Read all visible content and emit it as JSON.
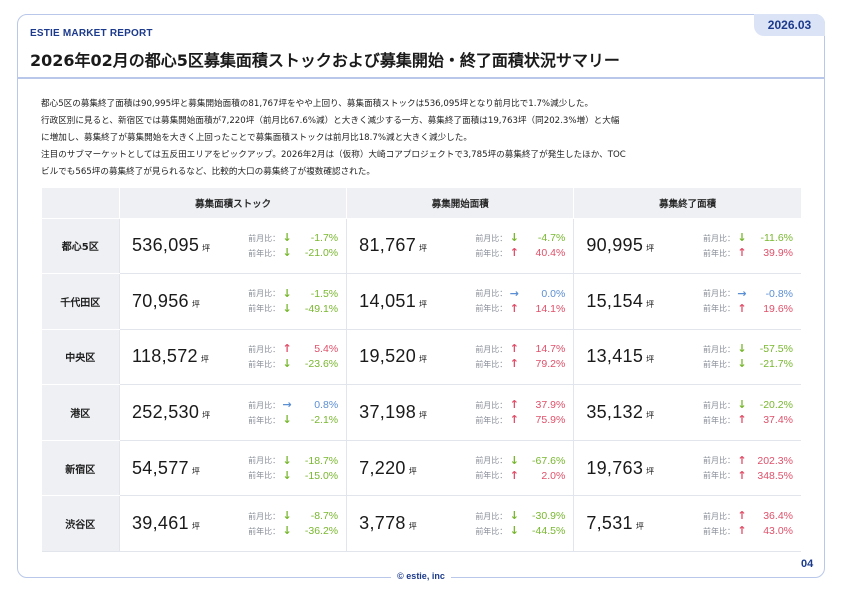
{
  "header": {
    "brand": "ESTIE MARKET REPORT",
    "date_badge": "2026.03",
    "title": "2026年02月の都心5区募集面積ストックおよび募集開始・終了面積状況サマリー"
  },
  "summary": [
    "都心5区の募集終了面積は90,995坪と募集開始面積の81,767坪をやや上回り、募集面積ストックは536,095坪となり前月比で1.7%減少した。",
    "行政区別に見ると、新宿区では募集開始面積が7,220坪（前月比67.6%減）と大きく減少する一方、募集終了面積は19,763坪（同202.3%増）と大幅",
    "に増加し、募集終了が募集開始を大きく上回ったことで募集面積ストックは前月比18.7%減と大きく減少した。",
    "注目のサブマーケットとしては五反田エリアをピックアップ。2026年2月は（仮称）大崎コアプロジェクトで3,785坪の募集終了が発生したほか、TOC",
    "ビルでも565坪の募集終了が見られるなど、比較的大口の募集終了が複数確認された。"
  ],
  "table": {
    "columns": [
      "募集面積ストック",
      "募集開始面積",
      "募集終了面積"
    ],
    "unit": "坪",
    "mom_label": "前月比：",
    "yoy_label": "前年比：",
    "rows": [
      {
        "area": "都心5区",
        "cells": [
          {
            "value": "536,095",
            "mom": {
              "dir": "down",
              "pct": "-1.7%"
            },
            "yoy": {
              "dir": "down",
              "pct": "-21.0%"
            }
          },
          {
            "value": "81,767",
            "mom": {
              "dir": "down",
              "pct": "-4.7%"
            },
            "yoy": {
              "dir": "up",
              "pct": "40.4%"
            }
          },
          {
            "value": "90,995",
            "mom": {
              "dir": "down",
              "pct": "-11.6%"
            },
            "yoy": {
              "dir": "up",
              "pct": "39.9%"
            }
          }
        ]
      },
      {
        "area": "千代田区",
        "cells": [
          {
            "value": "70,956",
            "mom": {
              "dir": "down",
              "pct": "-1.5%"
            },
            "yoy": {
              "dir": "down",
              "pct": "-49.1%"
            }
          },
          {
            "value": "14,051",
            "mom": {
              "dir": "flat",
              "pct": "0.0%"
            },
            "yoy": {
              "dir": "up",
              "pct": "14.1%"
            }
          },
          {
            "value": "15,154",
            "mom": {
              "dir": "flat",
              "pct": "-0.8%"
            },
            "yoy": {
              "dir": "up",
              "pct": "19.6%"
            }
          }
        ]
      },
      {
        "area": "中央区",
        "cells": [
          {
            "value": "118,572",
            "mom": {
              "dir": "up",
              "pct": "5.4%"
            },
            "yoy": {
              "dir": "down",
              "pct": "-23.6%"
            }
          },
          {
            "value": "19,520",
            "mom": {
              "dir": "up",
              "pct": "14.7%"
            },
            "yoy": {
              "dir": "up",
              "pct": "79.2%"
            }
          },
          {
            "value": "13,415",
            "mom": {
              "dir": "down",
              "pct": "-57.5%"
            },
            "yoy": {
              "dir": "down",
              "pct": "-21.7%"
            }
          }
        ]
      },
      {
        "area": "港区",
        "cells": [
          {
            "value": "252,530",
            "mom": {
              "dir": "flat",
              "pct": "0.8%"
            },
            "yoy": {
              "dir": "down",
              "pct": "-2.1%"
            }
          },
          {
            "value": "37,198",
            "mom": {
              "dir": "up",
              "pct": "37.9%"
            },
            "yoy": {
              "dir": "up",
              "pct": "75.9%"
            }
          },
          {
            "value": "35,132",
            "mom": {
              "dir": "down",
              "pct": "-20.2%"
            },
            "yoy": {
              "dir": "up",
              "pct": "37.4%"
            }
          }
        ]
      },
      {
        "area": "新宿区",
        "cells": [
          {
            "value": "54,577",
            "mom": {
              "dir": "down",
              "pct": "-18.7%"
            },
            "yoy": {
              "dir": "down",
              "pct": "-15.0%"
            }
          },
          {
            "value": "7,220",
            "mom": {
              "dir": "down",
              "pct": "-67.6%"
            },
            "yoy": {
              "dir": "up",
              "pct": "2.0%"
            }
          },
          {
            "value": "19,763",
            "mom": {
              "dir": "up",
              "pct": "202.3%"
            },
            "yoy": {
              "dir": "up",
              "pct": "348.5%"
            }
          }
        ]
      },
      {
        "area": "渋谷区",
        "cells": [
          {
            "value": "39,461",
            "mom": {
              "dir": "down",
              "pct": "-8.7%"
            },
            "yoy": {
              "dir": "down",
              "pct": "-36.2%"
            }
          },
          {
            "value": "3,778",
            "mom": {
              "dir": "down",
              "pct": "-30.9%"
            },
            "yoy": {
              "dir": "down",
              "pct": "-44.5%"
            }
          },
          {
            "value": "7,531",
            "mom": {
              "dir": "up",
              "pct": "36.4%"
            },
            "yoy": {
              "dir": "up",
              "pct": "43.0%"
            }
          }
        ]
      }
    ]
  },
  "colors": {
    "accent": "#1c3a8c",
    "border": "#b9c8ea",
    "up": "#e0506a",
    "down": "#79b72f",
    "flat": "#5b8fd4"
  },
  "icons": {
    "up": "arrow-up-icon",
    "down": "arrow-down-icon",
    "flat": "arrow-right-icon"
  },
  "footer": {
    "copyright": "© estie, inc",
    "page_number": "04"
  }
}
